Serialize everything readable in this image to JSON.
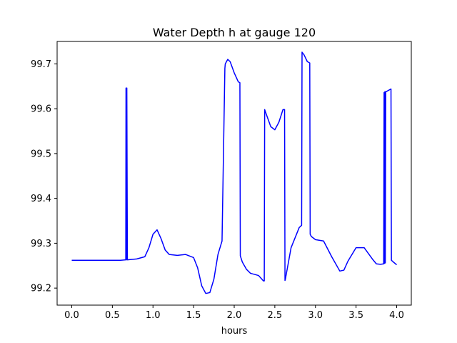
{
  "chart_data": {
    "type": "line",
    "title": "Water Depth h at gauge 120",
    "xlabel": "hours",
    "ylabel": "",
    "xlim": [
      -0.18,
      4.18
    ],
    "ylim": [
      99.162,
      99.75
    ],
    "xticks": [
      "0.0",
      "0.5",
      "1.0",
      "1.5",
      "2.0",
      "2.5",
      "3.0",
      "3.5",
      "4.0"
    ],
    "yticks": [
      "99.2",
      "99.3",
      "99.4",
      "99.5",
      "99.6",
      "99.7"
    ],
    "grid": false,
    "legend": "none",
    "series": [
      {
        "color": "#0000ff",
        "x": [
          0.0,
          0.3,
          0.6,
          0.665,
          0.668,
          0.672,
          0.675,
          0.678,
          0.685,
          0.8,
          0.9,
          0.95,
          1.0,
          1.05,
          1.1,
          1.15,
          1.2,
          1.3,
          1.4,
          1.5,
          1.55,
          1.6,
          1.65,
          1.7,
          1.75,
          1.8,
          1.85,
          1.885,
          1.89,
          1.92,
          1.95,
          2.0,
          2.05,
          2.07,
          2.075,
          2.1,
          2.15,
          2.2,
          2.3,
          2.36,
          2.37,
          2.375,
          2.4,
          2.45,
          2.5,
          2.55,
          2.6,
          2.62,
          2.625,
          2.63,
          2.7,
          2.8,
          2.83,
          2.835,
          2.86,
          2.9,
          2.93,
          2.935,
          2.95,
          3.0,
          3.1,
          3.2,
          3.3,
          3.35,
          3.4,
          3.5,
          3.6,
          3.7,
          3.75,
          3.8,
          3.84,
          3.845,
          3.85,
          3.855,
          3.86,
          3.865,
          3.87,
          3.93,
          3.935,
          3.96,
          4.0
        ],
        "y": [
          99.262,
          99.262,
          99.262,
          99.263,
          99.646,
          99.646,
          99.263,
          99.646,
          99.263,
          99.265,
          99.27,
          99.29,
          99.32,
          99.33,
          99.31,
          99.285,
          99.275,
          99.273,
          99.275,
          99.268,
          99.245,
          99.205,
          99.188,
          99.19,
          99.22,
          99.275,
          99.305,
          99.69,
          99.7,
          99.71,
          99.705,
          99.68,
          99.66,
          99.658,
          99.272,
          99.258,
          99.242,
          99.233,
          99.228,
          99.216,
          99.216,
          99.598,
          99.585,
          99.56,
          99.553,
          99.57,
          99.598,
          99.598,
          99.217,
          99.22,
          99.29,
          99.335,
          99.34,
          99.726,
          99.72,
          99.705,
          99.702,
          99.32,
          99.315,
          99.308,
          99.305,
          99.27,
          99.238,
          99.24,
          99.26,
          99.29,
          99.29,
          99.265,
          99.254,
          99.253,
          99.254,
          99.636,
          99.255,
          99.638,
          99.256,
          99.638,
          99.638,
          99.644,
          99.262,
          99.258,
          99.252
        ]
      }
    ]
  }
}
